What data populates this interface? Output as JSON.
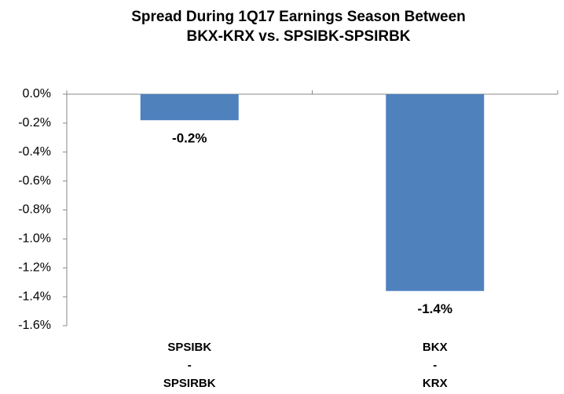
{
  "chart_data": {
    "type": "bar",
    "title": [
      "Spread During 1Q17 Earnings Season Between",
      "BKX-KRX vs. SPSIBK-SPSIRBK"
    ],
    "categories": [
      [
        "SPSIBK",
        "-",
        "SPSIRBK"
      ],
      [
        "BKX",
        "-",
        "KRX"
      ]
    ],
    "values": [
      -0.18,
      -1.36
    ],
    "value_labels": [
      "-0.2%",
      "-1.4%"
    ],
    "color": "#4f81bd",
    "ylim": [
      -1.6,
      0
    ],
    "yticks": [
      {
        "value": 0,
        "label": "0.0%"
      },
      {
        "value": -0.2,
        "label": "-0.2%"
      },
      {
        "value": -0.4,
        "label": "-0.4%"
      },
      {
        "value": -0.6,
        "label": "-0.6%"
      },
      {
        "value": -0.8,
        "label": "-0.8%"
      },
      {
        "value": -1.0,
        "label": "-1.0%"
      },
      {
        "value": -1.2,
        "label": "-1.2%"
      },
      {
        "value": -1.4,
        "label": "-1.4%"
      },
      {
        "value": -1.6,
        "label": "-1.6%"
      }
    ],
    "grid": false
  }
}
